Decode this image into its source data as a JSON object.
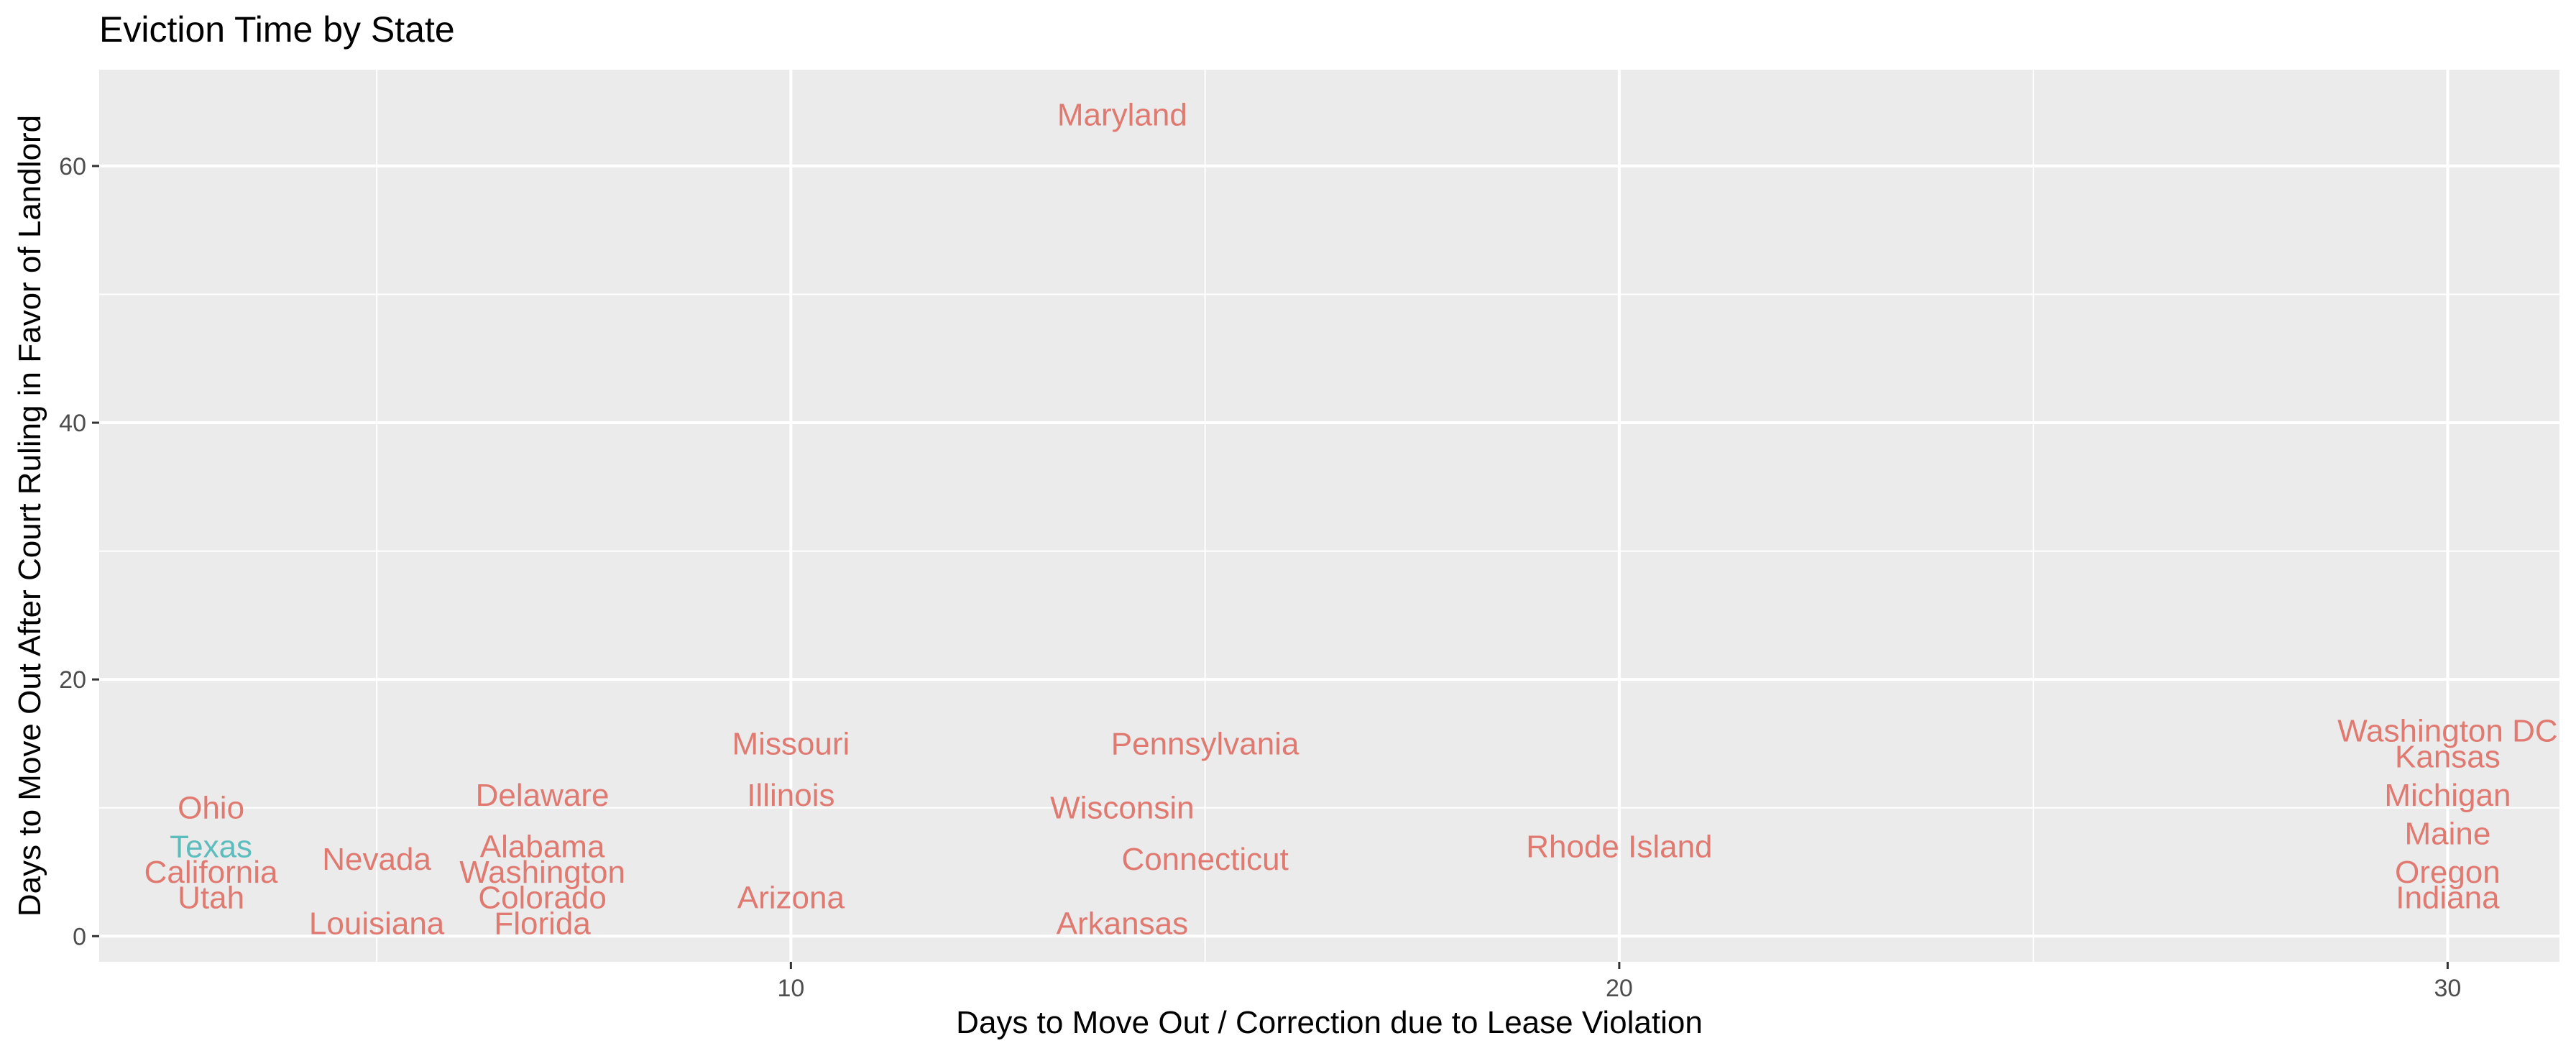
{
  "chart_data": {
    "type": "scatter",
    "title": "Eviction Time by State",
    "xlabel": "Days to Move Out / Correction due to Lease Violation",
    "ylabel": "Days to Move Out After Court Ruling in Favor of Landlord",
    "xlim": [
      1.65,
      31.35
    ],
    "ylim": [
      -2.0,
      67.5
    ],
    "xticks": [
      10,
      20,
      30
    ],
    "yticks": [
      0,
      20,
      40,
      60
    ],
    "grid": true,
    "legend": "none",
    "colors": {
      "default": "#e07970",
      "highlight": "#5dbdbd",
      "panel": "#ebebeb",
      "grid": "#ffffff"
    },
    "points": [
      {
        "label": "Maryland",
        "x": 14,
        "y": 64,
        "group": "default"
      },
      {
        "label": "Missouri",
        "x": 10,
        "y": 15,
        "group": "default"
      },
      {
        "label": "Pennsylvania",
        "x": 15,
        "y": 15,
        "group": "default"
      },
      {
        "label": "Washington DC",
        "x": 30,
        "y": 16,
        "group": "default"
      },
      {
        "label": "Kansas",
        "x": 30,
        "y": 14,
        "group": "default"
      },
      {
        "label": "Ohio",
        "x": 3,
        "y": 10,
        "group": "default"
      },
      {
        "label": "Delaware",
        "x": 7,
        "y": 11,
        "group": "default"
      },
      {
        "label": "Illinois",
        "x": 10,
        "y": 11,
        "group": "default"
      },
      {
        "label": "Wisconsin",
        "x": 14,
        "y": 10,
        "group": "default"
      },
      {
        "label": "Michigan",
        "x": 30,
        "y": 11,
        "group": "default"
      },
      {
        "label": "Maine",
        "x": 30,
        "y": 8,
        "group": "default"
      },
      {
        "label": "Texas",
        "x": 3,
        "y": 7,
        "group": "highlight"
      },
      {
        "label": "Alabama",
        "x": 7,
        "y": 7,
        "group": "default"
      },
      {
        "label": "Rhode Island",
        "x": 20,
        "y": 7,
        "group": "default"
      },
      {
        "label": "Nevada",
        "x": 5,
        "y": 6,
        "group": "default"
      },
      {
        "label": "Connecticut",
        "x": 15,
        "y": 6,
        "group": "default"
      },
      {
        "label": "California",
        "x": 3,
        "y": 5,
        "group": "default"
      },
      {
        "label": "Washington",
        "x": 7,
        "y": 5,
        "group": "default"
      },
      {
        "label": "Oregon",
        "x": 30,
        "y": 5,
        "group": "default"
      },
      {
        "label": "Utah",
        "x": 3,
        "y": 3,
        "group": "default"
      },
      {
        "label": "Colorado",
        "x": 7,
        "y": 3,
        "group": "default"
      },
      {
        "label": "Arizona",
        "x": 10,
        "y": 3,
        "group": "default"
      },
      {
        "label": "Indiana",
        "x": 30,
        "y": 3,
        "group": "default"
      },
      {
        "label": "Louisiana",
        "x": 5,
        "y": 1,
        "group": "default"
      },
      {
        "label": "Florida",
        "x": 7,
        "y": 1,
        "group": "default"
      },
      {
        "label": "Arkansas",
        "x": 14,
        "y": 1,
        "group": "default"
      }
    ]
  }
}
